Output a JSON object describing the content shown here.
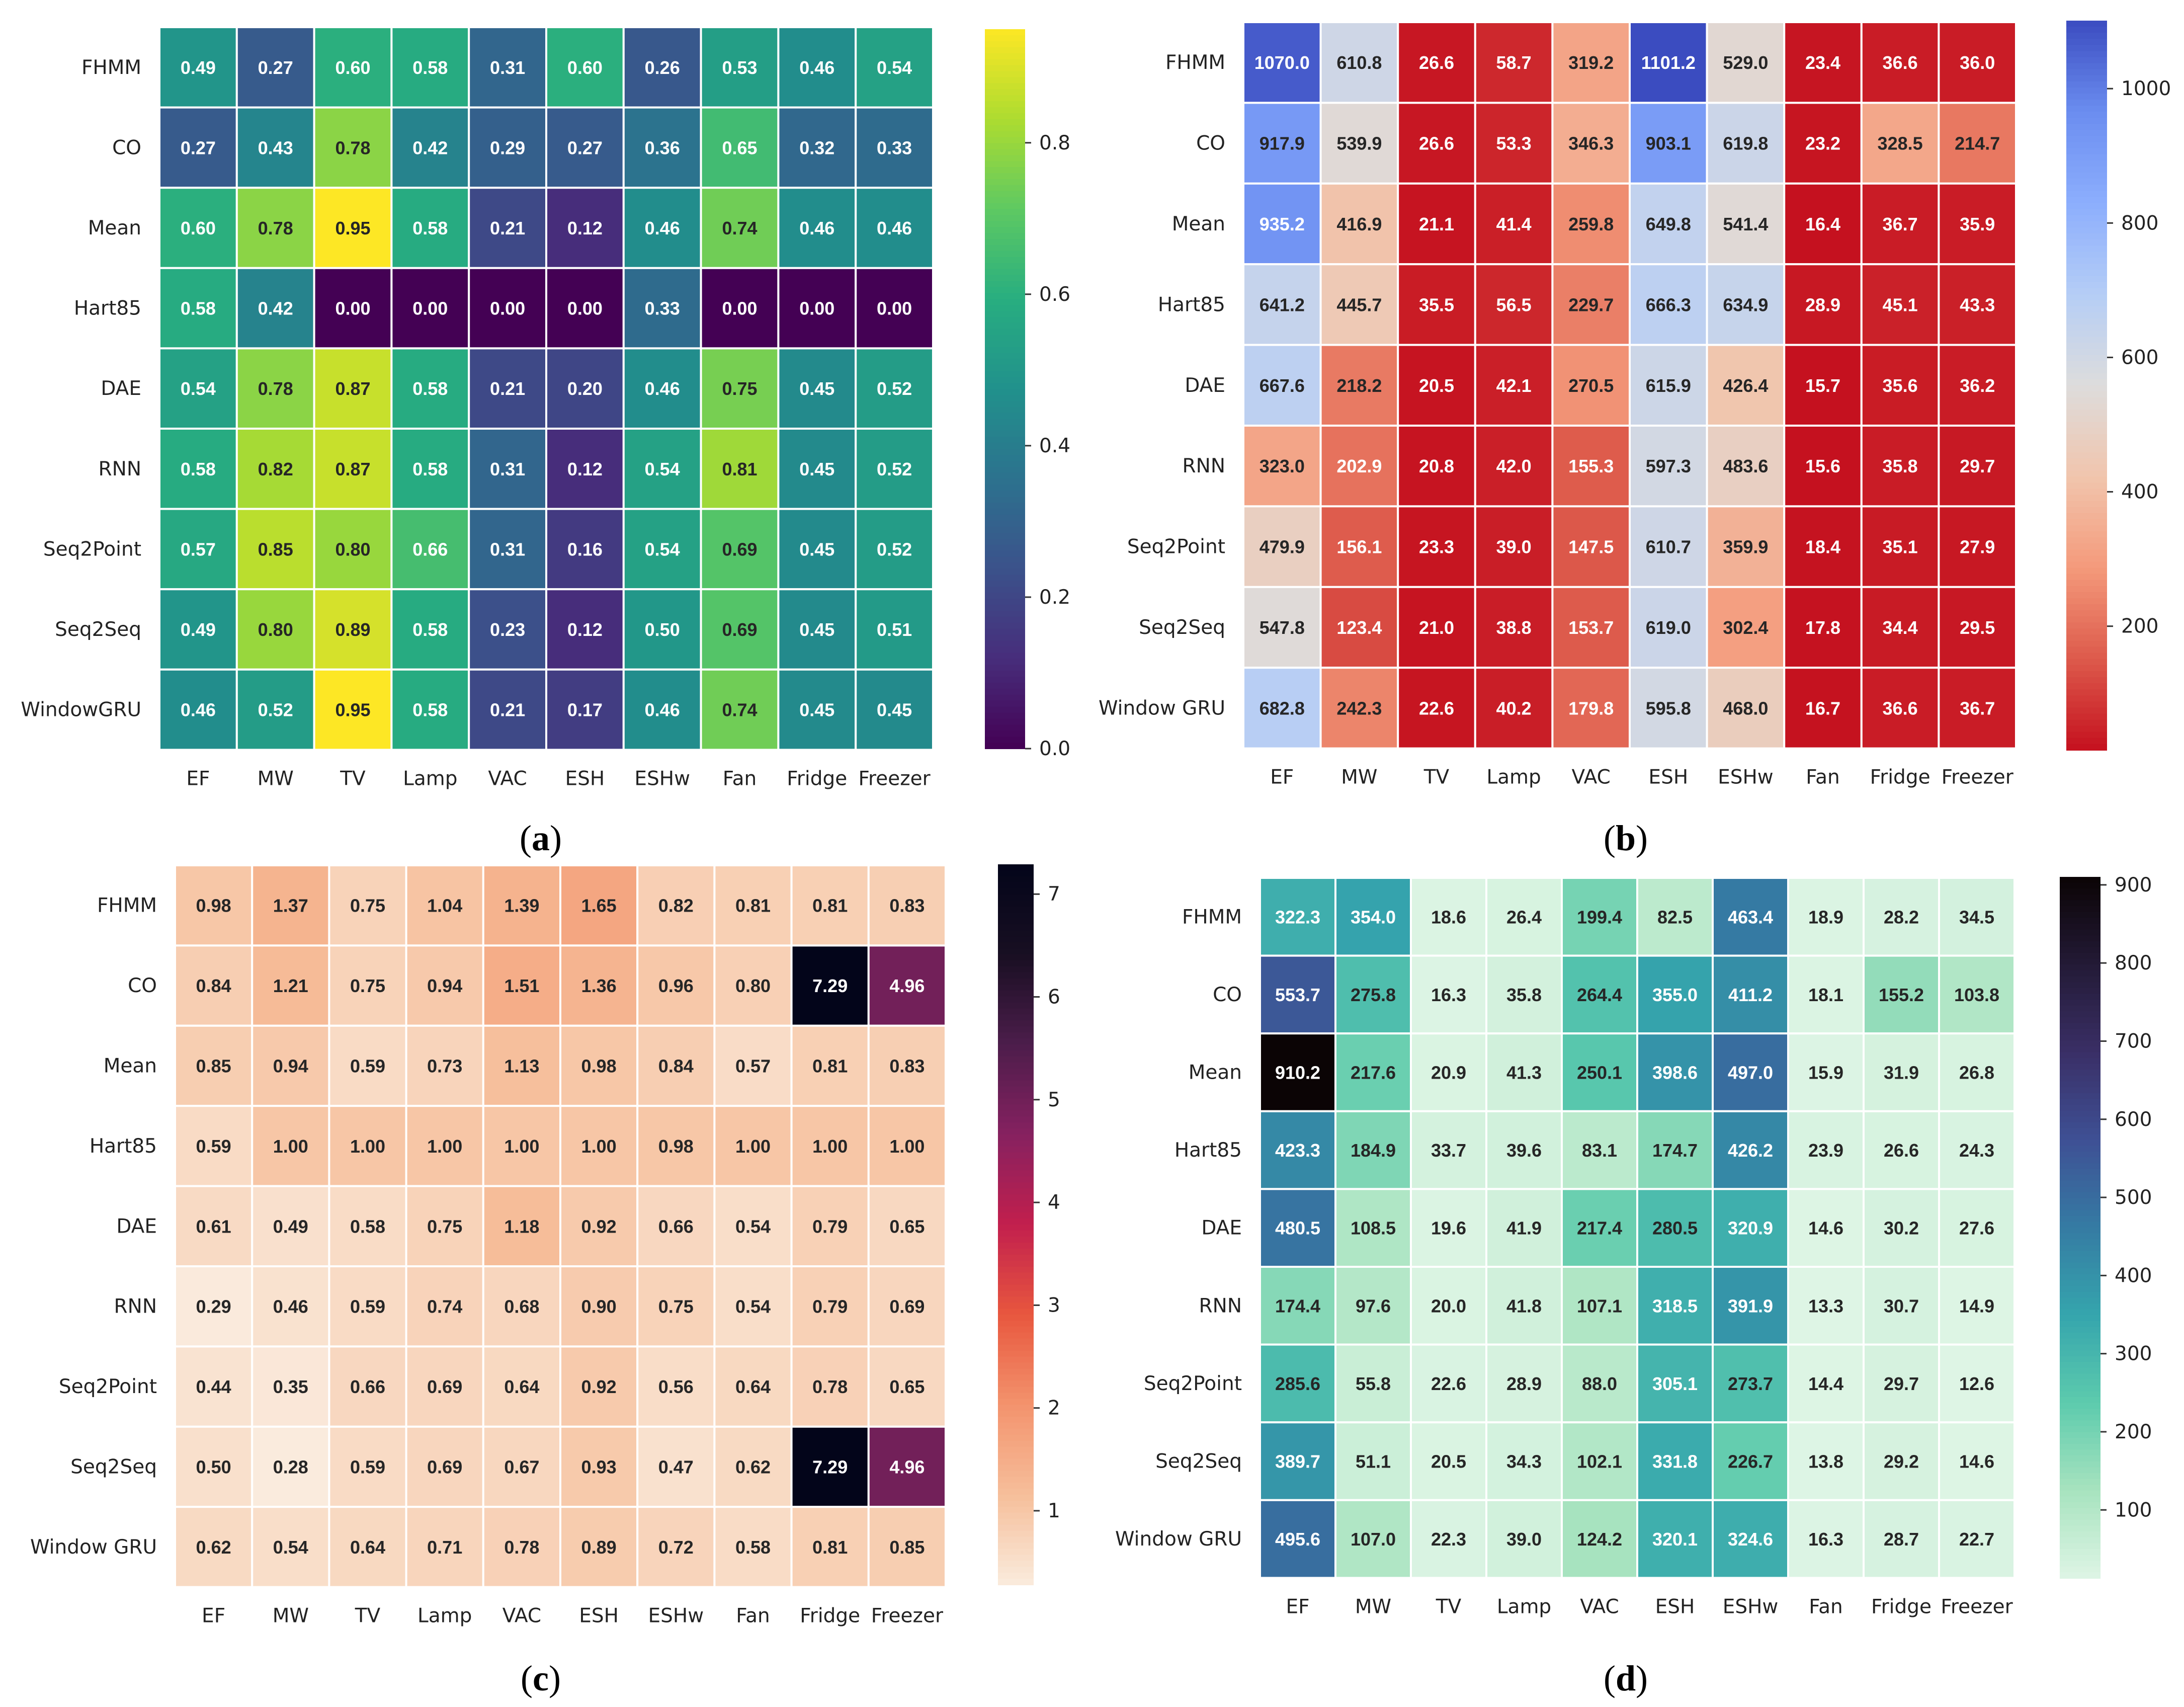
{
  "chart_data": [
    {
      "type": "heatmap",
      "panel": "(a)",
      "colormap": "viridis",
      "rows": [
        "FHMM",
        "CO",
        "Mean",
        "Hart85",
        "DAE",
        "RNN",
        "Seq2Point",
        "Seq2Seq",
        "WindowGRU"
      ],
      "columns": [
        "EF",
        "MW",
        "TV",
        "Lamp",
        "VAC",
        "ESH",
        "ESHw",
        "Fan",
        "Fridge",
        "Freezer"
      ],
      "values": [
        [
          0.49,
          0.27,
          0.6,
          0.58,
          0.31,
          0.6,
          0.26,
          0.53,
          0.46,
          0.54
        ],
        [
          0.27,
          0.43,
          0.78,
          0.42,
          0.29,
          0.27,
          0.36,
          0.65,
          0.32,
          0.33
        ],
        [
          0.6,
          0.78,
          0.95,
          0.58,
          0.21,
          0.12,
          0.46,
          0.74,
          0.46,
          0.46
        ],
        [
          0.58,
          0.42,
          0.0,
          0.0,
          0.0,
          0.0,
          0.33,
          0.0,
          0.0,
          0.0
        ],
        [
          0.54,
          0.78,
          0.87,
          0.58,
          0.21,
          0.2,
          0.46,
          0.75,
          0.45,
          0.52
        ],
        [
          0.58,
          0.82,
          0.87,
          0.58,
          0.31,
          0.12,
          0.54,
          0.81,
          0.45,
          0.52
        ],
        [
          0.57,
          0.85,
          0.8,
          0.66,
          0.31,
          0.16,
          0.54,
          0.69,
          0.45,
          0.52
        ],
        [
          0.49,
          0.8,
          0.89,
          0.58,
          0.23,
          0.12,
          0.5,
          0.69,
          0.45,
          0.51
        ],
        [
          0.46,
          0.52,
          0.95,
          0.58,
          0.21,
          0.17,
          0.46,
          0.74,
          0.45,
          0.45
        ]
      ],
      "decimals": 2,
      "vmin": 0.0,
      "vmax": 0.95,
      "colorbar_ticks": [
        0.0,
        0.2,
        0.4,
        0.6,
        0.8
      ],
      "colorbar_tick_labels": [
        "0.0",
        "0.2",
        "0.4",
        "0.6",
        "0.8"
      ]
    },
    {
      "type": "heatmap",
      "panel": "(b)",
      "colormap": "coolwarm_r",
      "rows": [
        "FHMM",
        "CO",
        "Mean",
        "Hart85",
        "DAE",
        "RNN",
        "Seq2Point",
        "Seq2Seq",
        "Window GRU"
      ],
      "columns": [
        "EF",
        "MW",
        "TV",
        "Lamp",
        "VAC",
        "ESH",
        "ESHw",
        "Fan",
        "Fridge",
        "Freezer"
      ],
      "values": [
        [
          1070.0,
          610.8,
          26.6,
          58.7,
          319.2,
          1101.2,
          529.0,
          23.4,
          36.6,
          36.0
        ],
        [
          917.9,
          539.9,
          26.6,
          53.3,
          346.3,
          903.1,
          619.8,
          23.2,
          328.5,
          214.7
        ],
        [
          935.2,
          416.9,
          21.1,
          41.4,
          259.8,
          649.8,
          541.4,
          16.4,
          36.7,
          35.9
        ],
        [
          641.2,
          445.7,
          35.5,
          56.5,
          229.7,
          666.3,
          634.9,
          28.9,
          45.1,
          43.3
        ],
        [
          667.6,
          218.2,
          20.5,
          42.1,
          270.5,
          615.9,
          426.4,
          15.7,
          35.6,
          36.2
        ],
        [
          323.0,
          202.9,
          20.8,
          42.0,
          155.3,
          597.3,
          483.6,
          15.6,
          35.8,
          29.7
        ],
        [
          479.9,
          156.1,
          23.3,
          39.0,
          147.5,
          610.7,
          359.9,
          18.4,
          35.1,
          27.9
        ],
        [
          547.8,
          123.4,
          21.0,
          38.8,
          153.7,
          619.0,
          302.4,
          17.8,
          34.4,
          29.5
        ],
        [
          682.8,
          242.3,
          22.6,
          40.2,
          179.8,
          595.8,
          468.0,
          16.7,
          36.6,
          36.7
        ]
      ],
      "decimals": 1,
      "vmin": 15.6,
      "vmax": 1101.2,
      "colorbar_ticks": [
        200,
        400,
        600,
        800,
        1000
      ],
      "colorbar_tick_labels": [
        "200",
        "400",
        "600",
        "800",
        "1000"
      ]
    },
    {
      "type": "heatmap",
      "panel": "(c)",
      "colormap": "rocket_r",
      "rows": [
        "FHMM",
        "CO",
        "Mean",
        "Hart85",
        "DAE",
        "RNN",
        "Seq2Point",
        "Seq2Seq",
        "Window GRU"
      ],
      "columns": [
        "EF",
        "MW",
        "TV",
        "Lamp",
        "VAC",
        "ESH",
        "ESHw",
        "Fan",
        "Fridge",
        "Freezer"
      ],
      "values": [
        [
          0.98,
          1.37,
          0.75,
          1.04,
          1.39,
          1.65,
          0.82,
          0.81,
          0.81,
          0.83
        ],
        [
          0.84,
          1.21,
          0.75,
          0.94,
          1.51,
          1.36,
          0.96,
          0.8,
          7.29,
          4.96
        ],
        [
          0.85,
          0.94,
          0.59,
          0.73,
          1.13,
          0.98,
          0.84,
          0.57,
          0.81,
          0.83
        ],
        [
          0.59,
          1.0,
          1.0,
          1.0,
          1.0,
          1.0,
          0.98,
          1.0,
          1.0,
          1.0
        ],
        [
          0.61,
          0.49,
          0.58,
          0.75,
          1.18,
          0.92,
          0.66,
          0.54,
          0.79,
          0.65
        ],
        [
          0.29,
          0.46,
          0.59,
          0.74,
          0.68,
          0.9,
          0.75,
          0.54,
          0.79,
          0.69
        ],
        [
          0.44,
          0.35,
          0.66,
          0.69,
          0.64,
          0.92,
          0.56,
          0.64,
          0.78,
          0.65
        ],
        [
          0.5,
          0.28,
          0.59,
          0.69,
          0.67,
          0.93,
          0.47,
          0.62,
          7.29,
          4.96
        ],
        [
          0.62,
          0.54,
          0.64,
          0.71,
          0.78,
          0.89,
          0.72,
          0.58,
          0.81,
          0.85
        ]
      ],
      "decimals": 2,
      "vmin": 0.28,
      "vmax": 7.29,
      "colorbar_ticks": [
        1,
        2,
        3,
        4,
        5,
        6,
        7
      ],
      "colorbar_tick_labels": [
        "1",
        "2",
        "3",
        "4",
        "5",
        "6",
        "7"
      ]
    },
    {
      "type": "heatmap",
      "panel": "(d)",
      "colormap": "mako_r",
      "rows": [
        "FHMM",
        "CO",
        "Mean",
        "Hart85",
        "DAE",
        "RNN",
        "Seq2Point",
        "Seq2Seq",
        "Window GRU"
      ],
      "columns": [
        "EF",
        "MW",
        "TV",
        "Lamp",
        "VAC",
        "ESH",
        "ESHw",
        "Fan",
        "Fridge",
        "Freezer"
      ],
      "values": [
        [
          322.3,
          354.0,
          18.6,
          26.4,
          199.4,
          82.5,
          463.4,
          18.9,
          28.2,
          34.5
        ],
        [
          553.7,
          275.8,
          16.3,
          35.8,
          264.4,
          355.0,
          411.2,
          18.1,
          155.2,
          103.8
        ],
        [
          910.2,
          217.6,
          20.9,
          41.3,
          250.1,
          398.6,
          497.0,
          15.9,
          31.9,
          26.8
        ],
        [
          423.3,
          184.9,
          33.7,
          39.6,
          83.1,
          174.7,
          426.2,
          23.9,
          26.6,
          24.3
        ],
        [
          480.5,
          108.5,
          19.6,
          41.9,
          217.4,
          280.5,
          320.9,
          14.6,
          30.2,
          27.6
        ],
        [
          174.4,
          97.6,
          20.0,
          41.8,
          107.1,
          318.5,
          391.9,
          13.3,
          30.7,
          14.9
        ],
        [
          285.6,
          55.8,
          22.6,
          28.9,
          88.0,
          305.1,
          273.7,
          14.4,
          29.7,
          12.6
        ],
        [
          389.7,
          51.1,
          20.5,
          34.3,
          102.1,
          331.8,
          226.7,
          13.8,
          29.2,
          14.6
        ],
        [
          495.6,
          107.0,
          22.3,
          39.0,
          124.2,
          320.1,
          324.6,
          16.3,
          28.7,
          22.7
        ]
      ],
      "decimals": 1,
      "vmin": 12.6,
      "vmax": 910.2,
      "colorbar_ticks": [
        100,
        200,
        300,
        400,
        500,
        600,
        700,
        800,
        900
      ],
      "colorbar_tick_labels": [
        "100",
        "200",
        "300",
        "400",
        "500",
        "600",
        "700",
        "800",
        "900"
      ]
    }
  ]
}
